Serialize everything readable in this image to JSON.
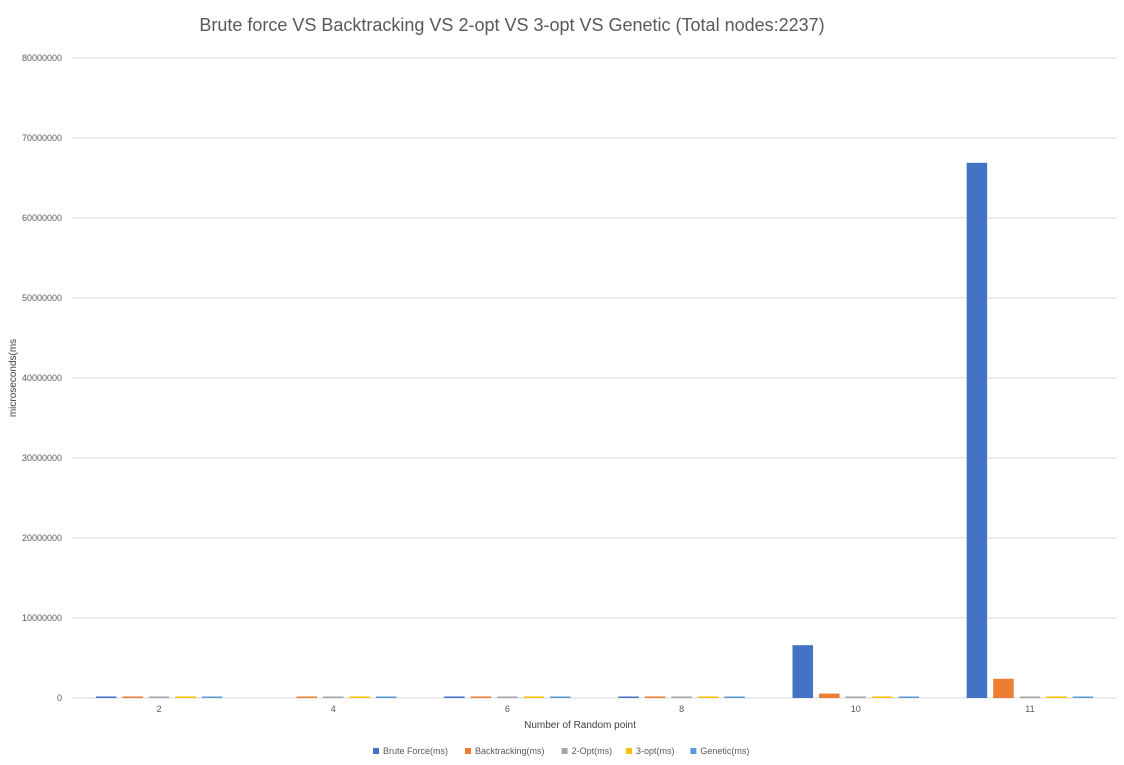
{
  "chart_data": {
    "type": "bar",
    "title": "Brute force VS Backtracking VS 2-opt VS 3-opt VS Genetic (Total nodes:2237)",
    "xlabel": "Number of Random point",
    "ylabel": "microseconds(ms",
    "categories": [
      "2",
      "4",
      "6",
      "8",
      "10",
      "11"
    ],
    "ylim": [
      0,
      80000000
    ],
    "yticks": [
      0,
      10000000,
      20000000,
      30000000,
      40000000,
      50000000,
      60000000,
      70000000,
      80000000
    ],
    "ytick_labels": [
      "0",
      "10000000",
      "20000000",
      "30000000",
      "40000000",
      "50000000",
      "60000000",
      "70000000",
      "80000000"
    ],
    "grid": true,
    "legend_position": "bottom",
    "series": [
      {
        "name": "Brute Force(ms)",
        "color": "#4472C4",
        "values": [
          120000,
          0,
          150000,
          140000,
          6600000,
          66900000
        ]
      },
      {
        "name": "Backtracking(ms)",
        "color": "#ED7D31",
        "values": [
          110000,
          140000,
          130000,
          130000,
          550000,
          2400000
        ]
      },
      {
        "name": "2-Opt(ms)",
        "color": "#A5A5A5",
        "values": [
          100000,
          100000,
          100000,
          100000,
          100000,
          100000
        ]
      },
      {
        "name": "3-opt(ms)",
        "color": "#FFC000",
        "values": [
          100000,
          100000,
          100000,
          100000,
          100000,
          100000
        ]
      },
      {
        "name": "Genetic(ms)",
        "color": "#5B9BD5",
        "values": [
          100000,
          100000,
          100000,
          100000,
          100000,
          100000
        ]
      }
    ]
  }
}
